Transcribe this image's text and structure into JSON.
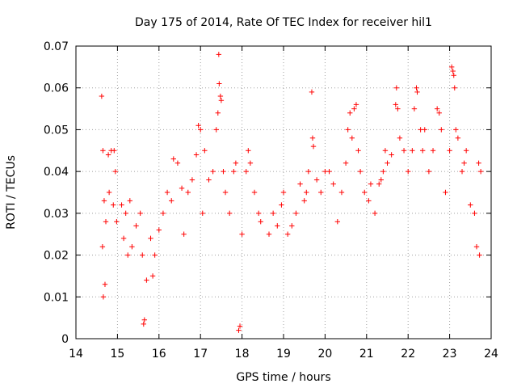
{
  "chart_data": {
    "type": "scatter",
    "title": "Day 175 of 2014, Rate Of TEC Index for receiver hil1",
    "xlabel": "GPS time / hours",
    "ylabel": "ROTI / TECUs",
    "xlim": [
      14,
      24
    ],
    "ylim": [
      0,
      0.07
    ],
    "x_ticks": [
      14,
      15,
      16,
      17,
      18,
      19,
      20,
      21,
      22,
      23,
      24
    ],
    "y_ticks": [
      0,
      0.01,
      0.02,
      0.03,
      0.04,
      0.05,
      0.06,
      0.07
    ],
    "x_tick_labels": [
      "14",
      "15",
      "16",
      "17",
      "18",
      "19",
      "20",
      "21",
      "22",
      "23",
      "24"
    ],
    "y_tick_labels": [
      "0",
      "0.01",
      "0.02",
      "0.03",
      "0.04",
      "0.05",
      "0.06",
      "0.07"
    ],
    "grid": true,
    "marker": "+",
    "series": [
      {
        "name": "hil1",
        "color": "#ff0000",
        "data_gap": [
          18.5,
          18.62
        ],
        "points": [
          [
            14.62,
            0.058
          ],
          [
            14.65,
            0.045
          ],
          [
            14.68,
            0.033
          ],
          [
            14.64,
            0.022
          ],
          [
            14.7,
            0.013
          ],
          [
            14.66,
            0.01
          ],
          [
            14.72,
            0.028
          ],
          [
            14.78,
            0.044
          ],
          [
            14.85,
            0.045
          ],
          [
            14.92,
            0.045
          ],
          [
            14.8,
            0.035
          ],
          [
            14.9,
            0.032
          ],
          [
            14.95,
            0.04
          ],
          [
            14.98,
            0.028
          ],
          [
            15.1,
            0.032
          ],
          [
            15.2,
            0.03
          ],
          [
            15.3,
            0.033
          ],
          [
            15.15,
            0.024
          ],
          [
            15.25,
            0.02
          ],
          [
            15.35,
            0.022
          ],
          [
            15.45,
            0.027
          ],
          [
            15.55,
            0.03
          ],
          [
            15.6,
            0.02
          ],
          [
            15.65,
            0.0045
          ],
          [
            15.63,
            0.0035
          ],
          [
            15.7,
            0.014
          ],
          [
            15.8,
            0.024
          ],
          [
            15.85,
            0.015
          ],
          [
            15.9,
            0.02
          ],
          [
            16.0,
            0.026
          ],
          [
            16.1,
            0.03
          ],
          [
            16.2,
            0.035
          ],
          [
            16.3,
            0.033
          ],
          [
            16.35,
            0.043
          ],
          [
            16.45,
            0.042
          ],
          [
            16.55,
            0.036
          ],
          [
            16.6,
            0.025
          ],
          [
            16.7,
            0.035
          ],
          [
            16.8,
            0.038
          ],
          [
            16.9,
            0.044
          ],
          [
            16.95,
            0.051
          ],
          [
            17.0,
            0.05
          ],
          [
            17.05,
            0.03
          ],
          [
            17.1,
            0.045
          ],
          [
            17.2,
            0.038
          ],
          [
            17.3,
            0.04
          ],
          [
            17.38,
            0.05
          ],
          [
            17.42,
            0.054
          ],
          [
            17.44,
            0.068
          ],
          [
            17.45,
            0.061
          ],
          [
            17.48,
            0.058
          ],
          [
            17.5,
            0.057
          ],
          [
            17.55,
            0.04
          ],
          [
            17.6,
            0.035
          ],
          [
            17.7,
            0.03
          ],
          [
            17.8,
            0.04
          ],
          [
            17.85,
            0.042
          ],
          [
            17.92,
            0.002
          ],
          [
            17.95,
            0.003
          ],
          [
            18.0,
            0.025
          ],
          [
            18.1,
            0.04
          ],
          [
            18.15,
            0.045
          ],
          [
            18.2,
            0.042
          ],
          [
            18.3,
            0.035
          ],
          [
            18.4,
            0.03
          ],
          [
            18.45,
            0.028
          ],
          [
            18.65,
            0.025
          ],
          [
            18.75,
            0.03
          ],
          [
            18.85,
            0.027
          ],
          [
            18.95,
            0.032
          ],
          [
            19.0,
            0.035
          ],
          [
            19.1,
            0.025
          ],
          [
            19.2,
            0.027
          ],
          [
            19.3,
            0.03
          ],
          [
            19.4,
            0.037
          ],
          [
            19.5,
            0.033
          ],
          [
            19.55,
            0.035
          ],
          [
            19.6,
            0.04
          ],
          [
            19.68,
            0.059
          ],
          [
            19.7,
            0.048
          ],
          [
            19.72,
            0.046
          ],
          [
            19.8,
            0.038
          ],
          [
            19.9,
            0.035
          ],
          [
            20.0,
            0.04
          ],
          [
            20.1,
            0.04
          ],
          [
            20.2,
            0.037
          ],
          [
            20.3,
            0.028
          ],
          [
            20.4,
            0.035
          ],
          [
            20.5,
            0.042
          ],
          [
            20.55,
            0.05
          ],
          [
            20.6,
            0.054
          ],
          [
            20.65,
            0.048
          ],
          [
            20.7,
            0.055
          ],
          [
            20.75,
            0.056
          ],
          [
            20.8,
            0.045
          ],
          [
            20.85,
            0.04
          ],
          [
            20.95,
            0.035
          ],
          [
            21.05,
            0.033
          ],
          [
            21.1,
            0.037
          ],
          [
            21.2,
            0.03
          ],
          [
            21.3,
            0.037
          ],
          [
            21.35,
            0.038
          ],
          [
            21.4,
            0.04
          ],
          [
            21.45,
            0.045
          ],
          [
            21.5,
            0.042
          ],
          [
            21.6,
            0.044
          ],
          [
            21.7,
            0.056
          ],
          [
            21.72,
            0.06
          ],
          [
            21.75,
            0.055
          ],
          [
            21.8,
            0.048
          ],
          [
            21.9,
            0.045
          ],
          [
            22.0,
            0.04
          ],
          [
            22.1,
            0.045
          ],
          [
            22.15,
            0.055
          ],
          [
            22.2,
            0.06
          ],
          [
            22.22,
            0.059
          ],
          [
            22.3,
            0.05
          ],
          [
            22.35,
            0.045
          ],
          [
            22.4,
            0.05
          ],
          [
            22.5,
            0.04
          ],
          [
            22.6,
            0.045
          ],
          [
            22.7,
            0.055
          ],
          [
            22.75,
            0.054
          ],
          [
            22.8,
            0.05
          ],
          [
            22.9,
            0.035
          ],
          [
            23.0,
            0.045
          ],
          [
            23.05,
            0.065
          ],
          [
            23.08,
            0.064
          ],
          [
            23.1,
            0.063
          ],
          [
            23.12,
            0.06
          ],
          [
            23.15,
            0.05
          ],
          [
            23.2,
            0.048
          ],
          [
            23.3,
            0.04
          ],
          [
            23.35,
            0.042
          ],
          [
            23.4,
            0.045
          ],
          [
            23.5,
            0.032
          ],
          [
            23.6,
            0.03
          ],
          [
            23.65,
            0.022
          ],
          [
            23.7,
            0.042
          ],
          [
            23.75,
            0.04
          ],
          [
            23.72,
            0.02
          ]
        ]
      }
    ]
  }
}
